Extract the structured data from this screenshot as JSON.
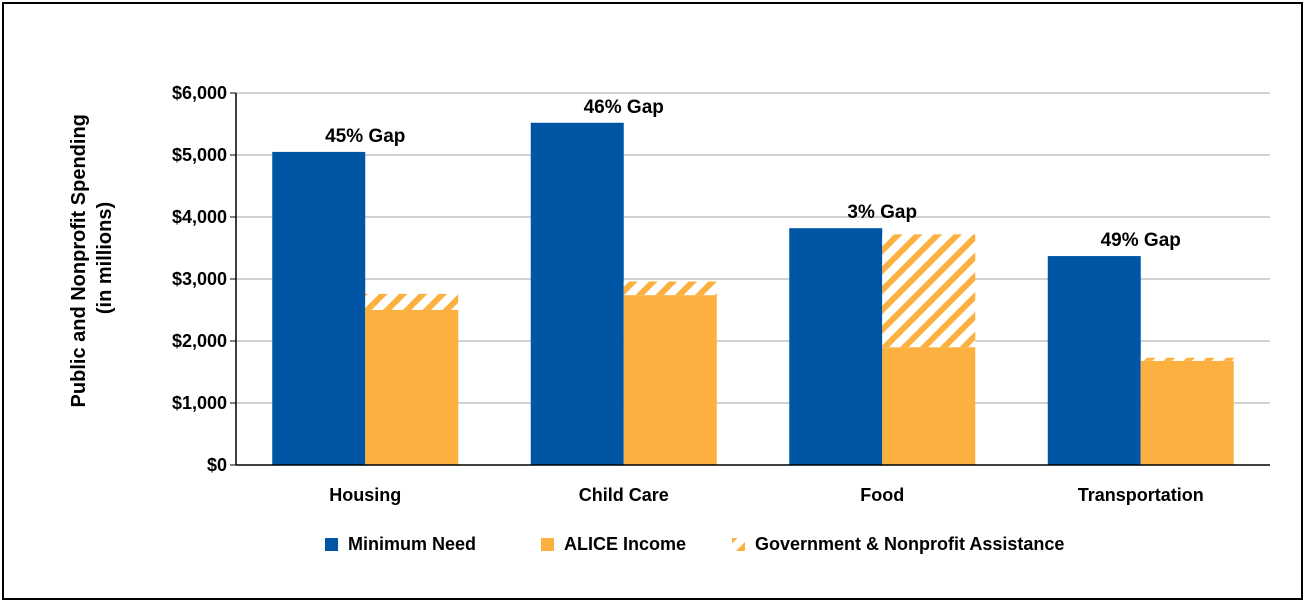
{
  "chart_data": {
    "type": "bar",
    "stacked_secondary": true,
    "categories": [
      "Housing",
      "Child Care",
      "Food",
      "Transportation"
    ],
    "series": [
      {
        "name": "Minimum Need",
        "values": [
          5050,
          5520,
          3820,
          3370
        ],
        "color": "#0056A5"
      },
      {
        "name": "ALICE Income",
        "values": [
          2500,
          2740,
          1900,
          1680
        ],
        "color": "#FBB040"
      },
      {
        "name": "Government & Nonprofit Assistance",
        "values": [
          260,
          220,
          1820,
          50
        ],
        "color": "#FBB040",
        "pattern": "diagonal-hatch",
        "stacked_on": "ALICE Income"
      }
    ],
    "annotations": [
      "45% Gap",
      "46% Gap",
      "3% Gap",
      "49% Gap"
    ],
    "ylabel": "Public and Nonprofit Spending (in millions)",
    "ylabel_lines": [
      "Public and Nonprofit Spending",
      "(in millions)"
    ],
    "xlabel": "",
    "title": "",
    "ylim": [
      0,
      6000
    ],
    "yticks": [
      0,
      1000,
      2000,
      3000,
      4000,
      5000,
      6000
    ],
    "ytick_labels": [
      "$0",
      "$1,000",
      "$2,000",
      "$3,000",
      "$4,000",
      "$5,000",
      "$6,000"
    ],
    "grid": true,
    "legend_position": "bottom"
  }
}
